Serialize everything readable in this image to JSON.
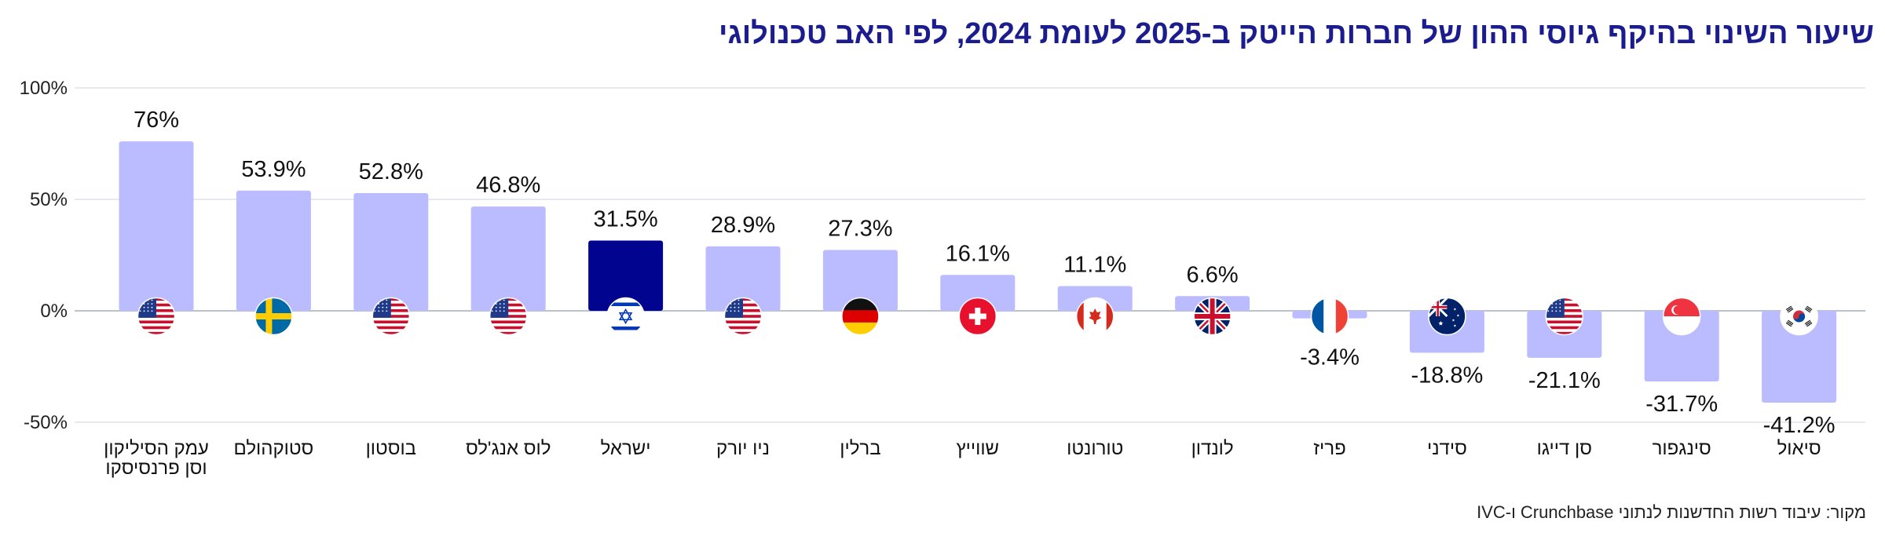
{
  "chart_data": {
    "type": "bar",
    "title": "שיעור השינוי בהיקף גיוסי ההון של חברות הייטק ב-2025 לעומת 2024, לפי האב טכנולוגי",
    "categories": [
      [
        "עמק הסיליקון",
        "וסן פרנסיסקו"
      ],
      [
        "סטוקהולם"
      ],
      [
        "בוסטון"
      ],
      [
        "לוס אנג'לס"
      ],
      [
        "ישראל"
      ],
      [
        "ניו יורק"
      ],
      [
        "ברלין"
      ],
      [
        "שווייץ"
      ],
      [
        "טורונטו"
      ],
      [
        "לונדון"
      ],
      [
        "פריז"
      ],
      [
        "סידני"
      ],
      [
        "סן דייגו"
      ],
      [
        "סינגפור"
      ],
      [
        "סיאול"
      ]
    ],
    "values": [
      76,
      53.9,
      52.8,
      46.8,
      31.5,
      28.9,
      27.3,
      16.1,
      11.1,
      6.6,
      -3.4,
      -18.8,
      -21.1,
      -31.7,
      -41.2
    ],
    "value_labels": [
      "76%",
      "53.9%",
      "52.8%",
      "46.8%",
      "31.5%",
      "28.9%",
      "27.3%",
      "16.1%",
      "11.1%",
      "6.6%",
      "-3.4%",
      "-18.8%",
      "-21.1%",
      "-31.7%",
      "-41.2%"
    ],
    "flags": [
      "us",
      "se",
      "us",
      "us",
      "il",
      "us",
      "de",
      "ch",
      "ca",
      "gb",
      "fr",
      "au",
      "us",
      "sg",
      "kr"
    ],
    "highlight": "ישראל",
    "yticks": [
      100,
      50,
      0,
      -50
    ],
    "ytick_labels": [
      "100%",
      "50%",
      "0%",
      "-50%"
    ],
    "ylim": [
      -50,
      100
    ],
    "grid": true,
    "xlabel": "",
    "ylabel": "",
    "colors": {
      "bar": "#bbbcff",
      "highlight": "#01048f",
      "title": "#1b1d8f",
      "grid": "#dde3ea",
      "zero": "#b9c3cd"
    }
  },
  "source": "מקור: עיבוד רשות החדשנות לנתוני Crunchbase ו-IVC"
}
